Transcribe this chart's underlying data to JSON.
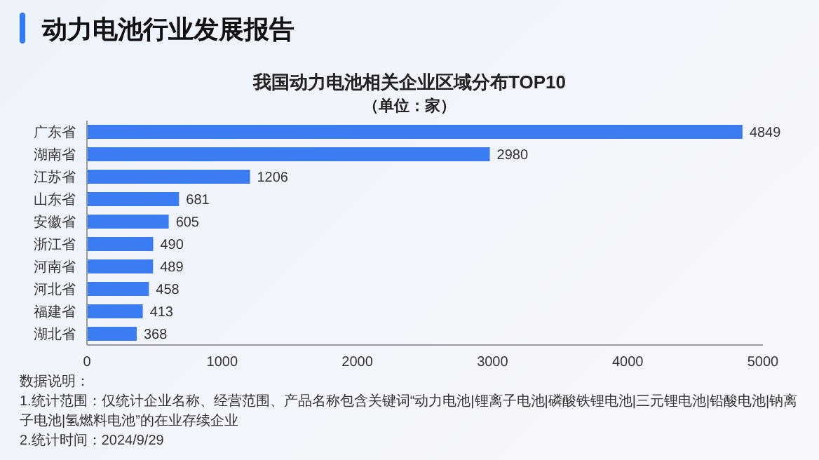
{
  "chart_data": {
    "type": "bar",
    "orientation": "horizontal",
    "title": "动力电池行业发展报告",
    "subtitle": "我国动力电池相关企业区域分布TOP10",
    "annotations": [
      "（单位：家）",
      "数据说明：",
      "1.统计范围：仅统计企业名称、经营范围、产品名称包含关键词“动力电池|锂离子电池|磷酸铁锂电池|三元锂电池|铅酸电池|钠离子电池|氢燃料电池”的在业存续企业",
      "2.统计时间：2024/9/29"
    ],
    "categories": [
      "广东省",
      "湖南省",
      "江苏省",
      "山东省",
      "安徽省",
      "浙江省",
      "河南省",
      "河北省",
      "福建省",
      "湖北省"
    ],
    "values": [
      4849,
      2980,
      1206,
      681,
      605,
      490,
      489,
      458,
      413,
      368
    ],
    "color": "#3a7cf3",
    "xlim": [
      0,
      5000
    ],
    "xticks": [
      0,
      1000,
      2000,
      3000,
      4000,
      5000
    ],
    "grid": false,
    "data_labels": true
  }
}
